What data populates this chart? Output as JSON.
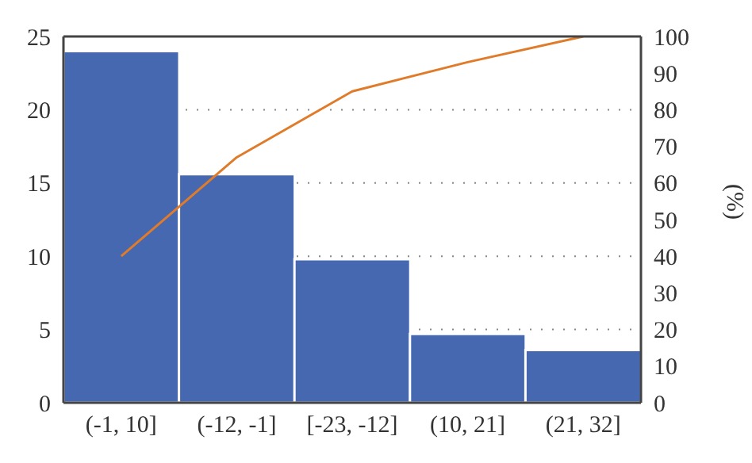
{
  "chart_data": {
    "type": "bar",
    "categories": [
      "(-1, 10]",
      "(-12, -1]",
      "[-23, -12]",
      "(10, 21]",
      "(21, 32]"
    ],
    "series": [
      {
        "color": "#4568b0",
        "values": [
          24,
          15.6,
          9.8,
          4.7,
          3.6
        ]
      },
      {
        "type": "line",
        "axis": "y2",
        "color": "#e07b2a",
        "values": [
          40,
          67,
          85,
          93,
          100
        ]
      }
    ],
    "ylim": [
      0,
      25
    ],
    "yticks": [
      0,
      5,
      10,
      15,
      20,
      25
    ],
    "y2lim": [
      0,
      100
    ],
    "y2ticks": [
      0,
      10,
      20,
      30,
      40,
      50,
      60,
      70,
      80,
      90,
      100
    ],
    "y2label": "(%)",
    "grid": "y",
    "marker": "none",
    "line_style": "solid"
  }
}
